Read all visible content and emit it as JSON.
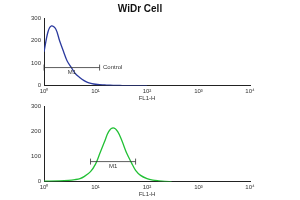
{
  "chart_data": [
    {
      "type": "line",
      "title": "WiDr Cell",
      "x": [
        1,
        1.2,
        1.4,
        1.7,
        2,
        2.4,
        2.8,
        3.4,
        4,
        5,
        6,
        7,
        8.5,
        10,
        12,
        15,
        18,
        22,
        27,
        33,
        40,
        50,
        60,
        75,
        100
      ],
      "series": [
        {
          "name": "Control",
          "color": "#2b3a9e",
          "values": [
            150,
            240,
            265,
            250,
            200,
            150,
            110,
            80,
            55,
            35,
            22,
            14,
            9,
            6,
            4,
            3,
            2,
            1,
            1,
            0,
            0,
            0,
            0,
            0,
            0
          ]
        }
      ],
      "log": "x",
      "xlim": [
        1,
        10000
      ],
      "xticks": [
        {
          "value": 1,
          "label": "10⁰"
        },
        {
          "value": 10,
          "label": "10¹"
        },
        {
          "value": 100,
          "label": "10²"
        },
        {
          "value": 1000,
          "label": "10³"
        },
        {
          "value": 10000,
          "label": "10⁴"
        }
      ],
      "ylim": [
        0,
        300
      ],
      "yticks": [
        0,
        100,
        200,
        300
      ],
      "x_label": "FL1-H",
      "grid": false,
      "gates": [
        {
          "label": "M1",
          "x": [
            1,
            12
          ],
          "y": 80
        }
      ],
      "annotations": [
        {
          "text": "Control",
          "x": 14,
          "y": 80
        }
      ]
    },
    {
      "type": "line",
      "x": [
        1,
        2,
        3,
        4,
        5,
        6,
        8,
        10,
        12,
        15,
        18,
        22,
        27,
        33,
        40,
        50,
        60,
        75,
        100,
        130,
        170,
        220,
        300
      ],
      "series": [
        {
          "name": "WiDr",
          "color": "#22c035",
          "values": [
            2,
            3,
            5,
            8,
            12,
            20,
            40,
            70,
            110,
            160,
            200,
            215,
            200,
            160,
            115,
            75,
            45,
            25,
            12,
            6,
            3,
            1,
            0
          ]
        }
      ],
      "log": "x",
      "xlim": [
        1,
        10000
      ],
      "xticks": [
        {
          "value": 1,
          "label": "10⁰"
        },
        {
          "value": 10,
          "label": "10¹"
        },
        {
          "value": 100,
          "label": "10²"
        },
        {
          "value": 1000,
          "label": "10³"
        },
        {
          "value": 10000,
          "label": "10⁴"
        }
      ],
      "ylim": [
        0,
        300
      ],
      "yticks": [
        0,
        100,
        200,
        300
      ],
      "x_label": "FL1-H",
      "grid": false,
      "gates": [
        {
          "label": "M1",
          "x": [
            8,
            60
          ],
          "y": 80
        }
      ]
    }
  ]
}
